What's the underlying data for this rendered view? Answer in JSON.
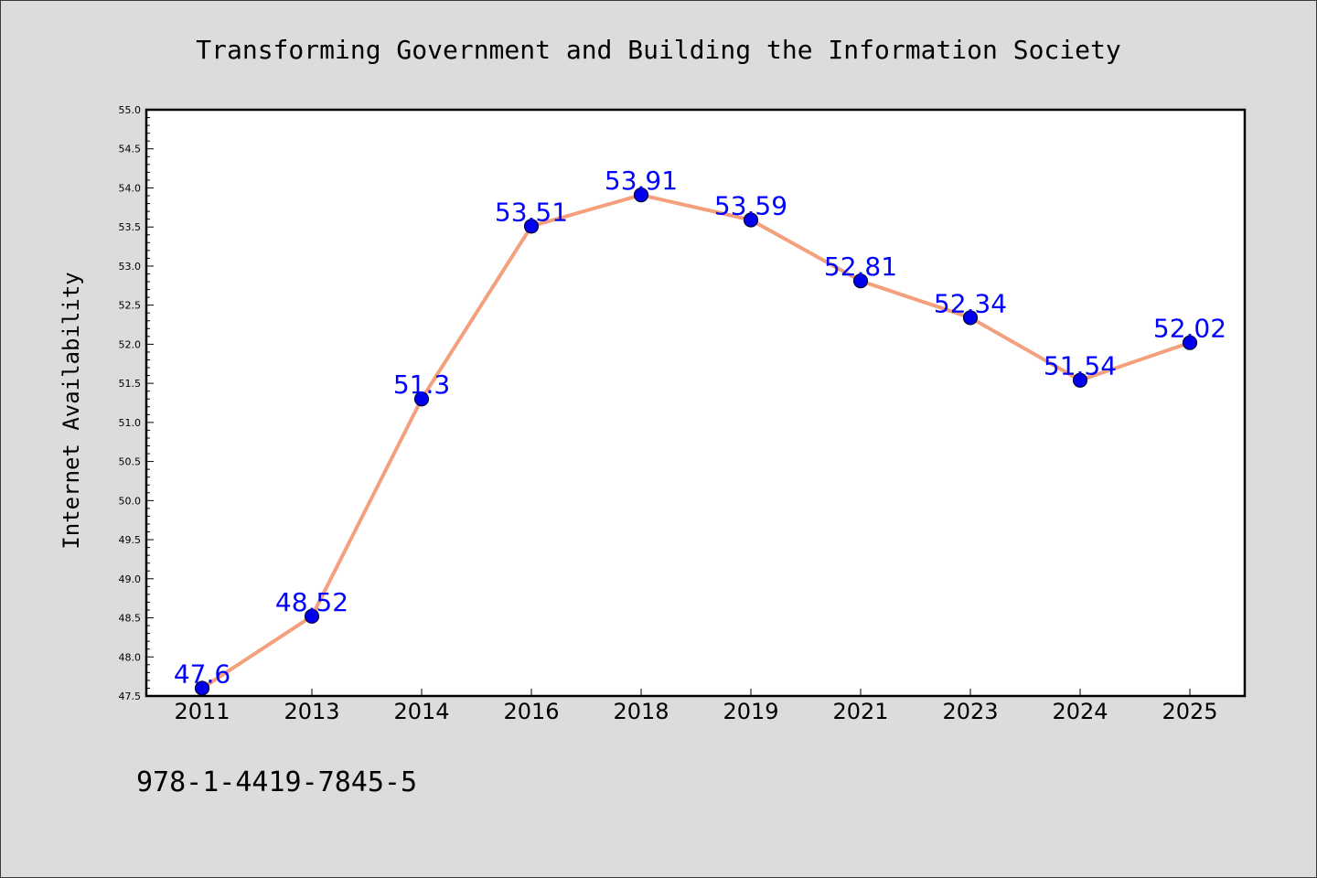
{
  "chart_data": {
    "type": "line",
    "title": "Transforming Government and Building the Information Society",
    "xlabel": "",
    "ylabel": "Internet Availability",
    "categories": [
      "2011",
      "2013",
      "2014",
      "2016",
      "2018",
      "2019",
      "2021",
      "2023",
      "2024",
      "2025"
    ],
    "series": [
      {
        "values": [
          47.6,
          48.52,
          51.3,
          53.51,
          53.91,
          53.59,
          52.81,
          52.34,
          51.54,
          52.02
        ],
        "data_labels": [
          "47.6",
          "48.52",
          "51.3",
          "53.51",
          "53.91",
          "53.59",
          "52.81",
          "52.34",
          "51.54",
          "52.02"
        ]
      }
    ],
    "ylim": [
      47.5,
      55.0
    ],
    "y_ticks": [
      "47.5",
      "48.0",
      "48.5",
      "49.0",
      "49.5",
      "50.0",
      "50.5",
      "51.0",
      "51.5",
      "52.0",
      "52.5",
      "53.0",
      "53.5",
      "54.0",
      "54.5",
      "55.0"
    ],
    "grid": false,
    "legend": "none",
    "colors": {
      "line": "#f4a07c",
      "marker": "#0000ee",
      "marker_edge": "#000033",
      "data_label": "#0000ff",
      "plot_background": "#ffffff",
      "figure_background": "#dcdcdc"
    }
  },
  "footnote": "978-1-4419-7845-5"
}
